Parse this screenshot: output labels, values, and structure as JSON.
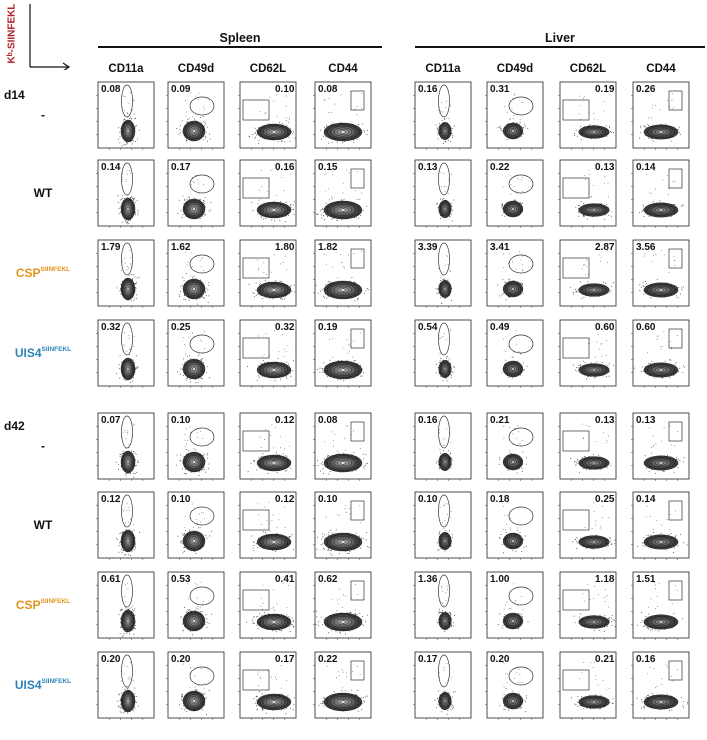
{
  "header": {
    "y_axis_label": "Kᵇ-SIINFEKL",
    "tissues": [
      "Spleen",
      "Liver"
    ],
    "markers": [
      "CD11a",
      "CD49d",
      "CD62L",
      "CD44"
    ]
  },
  "colors": {
    "axis_label": "#b0232a",
    "CSP": "#e0941c",
    "UIS4": "#2b84b8",
    "contour": "#111111"
  },
  "timepoints": [
    {
      "label": "d14",
      "rows": [
        {
          "label": "-",
          "label_sup": "",
          "color": "",
          "spleen": [
            "0.08",
            "0.09",
            "0.10",
            "0.08"
          ],
          "liver": [
            "0.16",
            "0.31",
            "0.19",
            "0.26"
          ]
        },
        {
          "label": "WT",
          "label_sup": "",
          "color": "",
          "spleen": [
            "0.14",
            "0.17",
            "0.16",
            "0.15"
          ],
          "liver": [
            "0.13",
            "0.22",
            "0.13",
            "0.14"
          ]
        },
        {
          "label": "CSP",
          "label_sup": "SIINFEKL",
          "color": "CSP",
          "spleen": [
            "1.79",
            "1.62",
            "1.80",
            "1.82"
          ],
          "liver": [
            "3.39",
            "3.41",
            "2.87",
            "3.56"
          ]
        },
        {
          "label": "UIS4",
          "label_sup": "SIINFEKL",
          "color": "UIS4",
          "spleen": [
            "0.32",
            "0.25",
            "0.32",
            "0.19"
          ],
          "liver": [
            "0.54",
            "0.49",
            "0.60",
            "0.60"
          ]
        }
      ]
    },
    {
      "label": "d42",
      "rows": [
        {
          "label": "-",
          "label_sup": "",
          "color": "",
          "spleen": [
            "0.07",
            "0.10",
            "0.12",
            "0.08"
          ],
          "liver": [
            "0.16",
            "0.21",
            "0.13",
            "0.13"
          ]
        },
        {
          "label": "WT",
          "label_sup": "",
          "color": "",
          "spleen": [
            "0.12",
            "0.10",
            "0.12",
            "0.10"
          ],
          "liver": [
            "0.10",
            "0.18",
            "0.25",
            "0.14"
          ]
        },
        {
          "label": "CSP",
          "label_sup": "SIINFEKL",
          "color": "CSP",
          "spleen": [
            "0.61",
            "0.53",
            "0.41",
            "0.62"
          ],
          "liver": [
            "1.36",
            "1.00",
            "1.18",
            "1.51"
          ]
        },
        {
          "label": "UIS4",
          "label_sup": "SIINFEKL",
          "color": "UIS4",
          "spleen": [
            "0.20",
            "0.20",
            "0.17",
            "0.22"
          ],
          "liver": [
            "0.17",
            "0.20",
            "0.21",
            "0.16"
          ]
        }
      ]
    }
  ]
}
